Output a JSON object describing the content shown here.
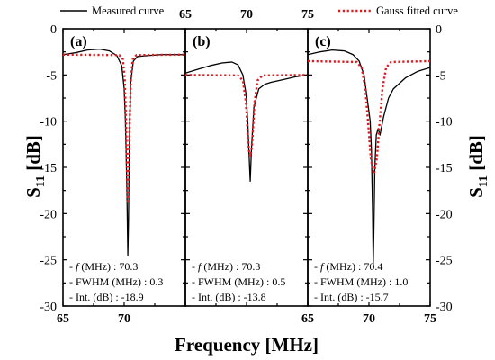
{
  "chart_data": {
    "type": "line",
    "xlabel": "Frequency [MHz]",
    "ylabel": "S₁₁ [dB]",
    "ylabel_parts": {
      "main": "S",
      "sub": "11",
      "unit": " [dB]"
    },
    "ylim": [
      -30,
      0
    ],
    "yticks": [
      0,
      -5,
      -10,
      -15,
      -20,
      -25,
      -30
    ],
    "ytick_labels": [
      "0",
      "-5",
      "-10",
      "-15",
      "-20",
      "-25",
      "-30"
    ],
    "top_tick_labels": [
      "65",
      "70",
      "75"
    ],
    "legend": {
      "placement": "top",
      "entries": [
        {
          "label": "Measured curve",
          "color": "#000000",
          "style": "solid"
        },
        {
          "label": "Gauss fitted curve",
          "color": "#e0191f",
          "style": "dotted"
        }
      ]
    },
    "panels": [
      {
        "label": "(a)",
        "xlim": [
          65,
          75
        ],
        "xticks": [
          65,
          70,
          75
        ],
        "xtick_labels": [
          "65",
          "70"
        ],
        "annotations": [
          "- f (MHz) : 70.3",
          "- FWHM (MHz) : 0.3",
          "- Int. (dB) : -18.9"
        ],
        "series": [
          {
            "name": "Measured curve",
            "x": [
              65,
              66,
              67,
              68,
              68.8,
              69.4,
              69.8,
              70.0,
              70.1,
              70.2,
              70.25,
              70.3,
              70.35,
              70.42,
              70.52,
              70.75,
              71.1,
              72,
              73,
              74,
              75
            ],
            "y": [
              -2.8,
              -2.6,
              -2.3,
              -2.2,
              -2.4,
              -2.9,
              -4.0,
              -6.5,
              -10.0,
              -16.0,
              -20.0,
              -24.5,
              -21.0,
              -13.0,
              -6.0,
              -3.5,
              -3.0,
              -2.9,
              -2.8,
              -2.8,
              -2.8
            ]
          },
          {
            "name": "Gauss fitted curve",
            "x": [
              65,
              69.6,
              69.9,
              70.05,
              70.15,
              70.25,
              70.3,
              70.35,
              70.45,
              70.55,
              70.7,
              71,
              75
            ],
            "y": [
              -2.8,
              -2.85,
              -3.3,
              -5.5,
              -10.0,
              -16.5,
              -18.9,
              -16.5,
              -10.0,
              -5.5,
              -3.3,
              -2.85,
              -2.8
            ]
          }
        ]
      },
      {
        "label": "(b)",
        "xlim": [
          65,
          75
        ],
        "xticks": [
          65,
          70,
          75
        ],
        "xtick_labels": [],
        "annotations": [
          "- f (MHz) : 70.3",
          "- FWHM (MHz) : 0.5",
          "- Int. (dB) : -13.8"
        ],
        "series": [
          {
            "name": "Measured curve",
            "x": [
              65,
              66,
              67,
              68,
              68.8,
              69.3,
              69.7,
              69.95,
              70.1,
              70.2,
              70.3,
              70.4,
              70.6,
              71,
              71.5,
              72,
              73,
              74,
              75
            ],
            "y": [
              -4.8,
              -4.4,
              -4.0,
              -3.7,
              -3.6,
              -3.9,
              -5.0,
              -7.0,
              -10.0,
              -13.5,
              -16.5,
              -13.0,
              -8.5,
              -6.5,
              -6.0,
              -5.8,
              -5.5,
              -5.2,
              -5.0
            ]
          },
          {
            "name": "Gauss fitted curve",
            "x": [
              65,
              69.3,
              69.7,
              69.95,
              70.1,
              70.2,
              70.3,
              70.4,
              70.5,
              70.65,
              70.9,
              71.3,
              75
            ],
            "y": [
              -5.0,
              -5.05,
              -5.6,
              -8.0,
              -11.5,
              -13.2,
              -13.8,
              -13.2,
              -11.5,
              -8.0,
              -5.6,
              -5.05,
              -5.0
            ]
          }
        ]
      },
      {
        "label": "(c)",
        "xlim": [
          65,
          75
        ],
        "xticks": [
          65,
          70,
          75
        ],
        "xtick_labels": [
          "65",
          "70",
          "75"
        ],
        "annotations": [
          "- f (MHz) : 70.4",
          "- FWHM (MHz) : 1.0",
          "- Int. (dB) : -15.7"
        ],
        "series": [
          {
            "name": "Measured curve",
            "x": [
              65,
              66,
              67,
              68,
              68.7,
              69.2,
              69.6,
              69.8,
              69.95,
              70.1,
              70.2,
              70.3,
              70.35,
              70.4,
              70.48,
              70.6,
              70.75,
              70.9,
              71.2,
              71.6,
              72,
              73,
              74,
              75
            ],
            "y": [
              -2.8,
              -2.5,
              -2.3,
              -2.4,
              -2.8,
              -3.5,
              -5.0,
              -7.0,
              -8.5,
              -10.0,
              -13.0,
              -20.0,
              -25.5,
              -22.0,
              -15.0,
              -11.5,
              -10.8,
              -11.5,
              -9.5,
              -7.5,
              -6.5,
              -5.3,
              -4.6,
              -4.2
            ]
          },
          {
            "name": "Gauss fitted curve",
            "x": [
              65,
              69.0,
              69.4,
              69.7,
              69.95,
              70.15,
              70.4,
              70.65,
              70.85,
              71.1,
              71.4,
              71.8,
              75
            ],
            "y": [
              -3.5,
              -3.6,
              -4.2,
              -6.5,
              -10.5,
              -14.0,
              -15.7,
              -14.0,
              -10.5,
              -6.5,
              -4.2,
              -3.6,
              -3.5
            ]
          }
        ]
      }
    ]
  }
}
